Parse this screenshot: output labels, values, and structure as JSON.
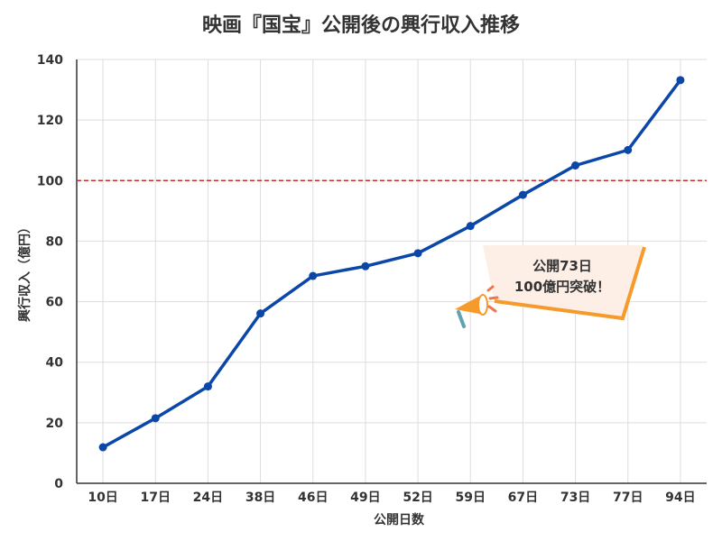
{
  "chart_data": {
    "type": "line",
    "title": "映画『国宝』公開後の興行収入推移",
    "xlabel": "公開日数",
    "ylabel": "興行収入（億円）",
    "categories": [
      "10日",
      "17日",
      "24日",
      "38日",
      "46日",
      "49日",
      "52日",
      "59日",
      "67日",
      "73日",
      "77日",
      "94日"
    ],
    "values": [
      11.9,
      21.5,
      32,
      56.1,
      68.5,
      71.7,
      76,
      85,
      95.3,
      105,
      110.1,
      133.2
    ],
    "ylim": [
      0,
      140
    ],
    "yticks": [
      0,
      20,
      40,
      60,
      80,
      100,
      120,
      140
    ],
    "grid": true,
    "reference_line": {
      "value": 100,
      "color": "#d62728",
      "style": "dashed"
    },
    "line_color": "#0a47a9",
    "callout": {
      "lines": [
        "公開73日",
        "100億円突破！"
      ],
      "fill_color": "#fdeee6",
      "border_color": "#f59a2b",
      "icon": "megaphone-icon"
    }
  }
}
